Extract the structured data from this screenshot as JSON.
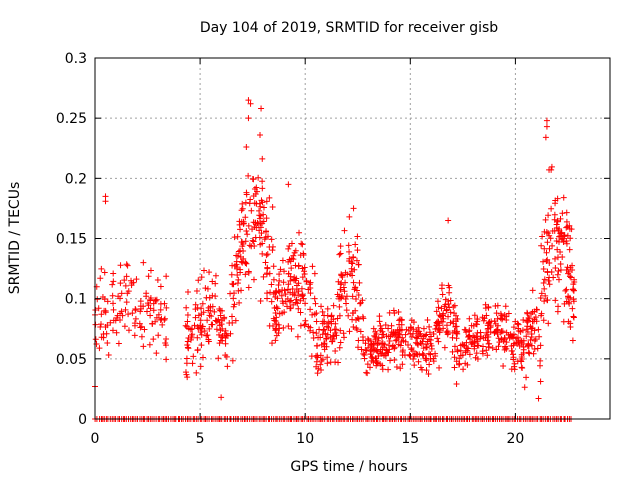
{
  "chart_data": {
    "type": "scatter",
    "title": "Day 104 of 2019, SRMTID for receiver gisb",
    "xlabel": "GPS time / hours",
    "ylabel": "SRMTID / TECUs",
    "xlim": [
      0,
      24.5
    ],
    "ylim": [
      0,
      0.3
    ],
    "x_ticks": [
      0,
      5,
      10,
      15,
      20
    ],
    "x_tick_labels": [
      "0",
      "5",
      "10",
      "15",
      "20"
    ],
    "y_ticks": [
      0,
      0.05,
      0.1,
      0.15,
      0.2,
      0.25,
      0.3
    ],
    "y_tick_labels": [
      "0",
      "0.05",
      "0.1",
      "0.15",
      "0.2",
      "0.25",
      "0.3"
    ],
    "grid": true,
    "marker": "+",
    "series": [
      {
        "name": "SRMTID",
        "color": "#ff0000",
        "segments": [
          {
            "t0": 0.0,
            "t1": 3.4,
            "n": 130,
            "base": 0.085,
            "amp": 0.02,
            "spread": 0.03
          },
          {
            "t0": 4.3,
            "t1": 6.5,
            "n": 120,
            "base": 0.075,
            "amp": 0.02,
            "spread": 0.028
          },
          {
            "t0": 6.5,
            "t1": 8.5,
            "n": 150,
            "base": 0.14,
            "amp": 0.05,
            "spread": 0.045
          },
          {
            "t0": 8.5,
            "t1": 10.5,
            "n": 140,
            "base": 0.1,
            "amp": 0.03,
            "spread": 0.03
          },
          {
            "t0": 10.5,
            "t1": 11.5,
            "n": 70,
            "base": 0.065,
            "amp": 0.01,
            "spread": 0.02
          },
          {
            "t0": 11.5,
            "t1": 12.8,
            "n": 90,
            "base": 0.1,
            "amp": 0.03,
            "spread": 0.035
          },
          {
            "t0": 12.8,
            "t1": 16.2,
            "n": 220,
            "base": 0.06,
            "amp": 0.01,
            "spread": 0.018
          },
          {
            "t0": 16.2,
            "t1": 17.2,
            "n": 70,
            "base": 0.08,
            "amp": 0.025,
            "spread": 0.025
          },
          {
            "t0": 17.2,
            "t1": 20.5,
            "n": 200,
            "base": 0.065,
            "amp": 0.015,
            "spread": 0.02
          },
          {
            "t0": 20.5,
            "t1": 21.2,
            "n": 50,
            "base": 0.07,
            "amp": 0.015,
            "spread": 0.025
          },
          {
            "t0": 21.2,
            "t1": 22.8,
            "n": 130,
            "base": 0.125,
            "amp": 0.04,
            "spread": 0.04
          }
        ],
        "outliers": [
          {
            "x": 7.3,
            "y": 0.265
          },
          {
            "x": 7.4,
            "y": 0.262
          },
          {
            "x": 7.3,
            "y": 0.25
          },
          {
            "x": 7.9,
            "y": 0.258
          },
          {
            "x": 7.85,
            "y": 0.236
          },
          {
            "x": 7.2,
            "y": 0.226
          },
          {
            "x": 21.5,
            "y": 0.248
          },
          {
            "x": 21.5,
            "y": 0.243
          },
          {
            "x": 21.45,
            "y": 0.234
          },
          {
            "x": 21.6,
            "y": 0.207
          },
          {
            "x": 21.7,
            "y": 0.207
          },
          {
            "x": 9.2,
            "y": 0.195
          },
          {
            "x": 0.5,
            "y": 0.185
          },
          {
            "x": 0.5,
            "y": 0.181
          },
          {
            "x": 12.3,
            "y": 0.175
          },
          {
            "x": 12.1,
            "y": 0.168
          },
          {
            "x": 16.8,
            "y": 0.165
          },
          {
            "x": 0.0,
            "y": 0.027
          },
          {
            "x": 6.0,
            "y": 0.018
          },
          {
            "x": 21.1,
            "y": 0.017
          }
        ],
        "zero_rug": {
          "t0": 0.0,
          "t1": 22.7,
          "n": 260
        }
      }
    ]
  }
}
